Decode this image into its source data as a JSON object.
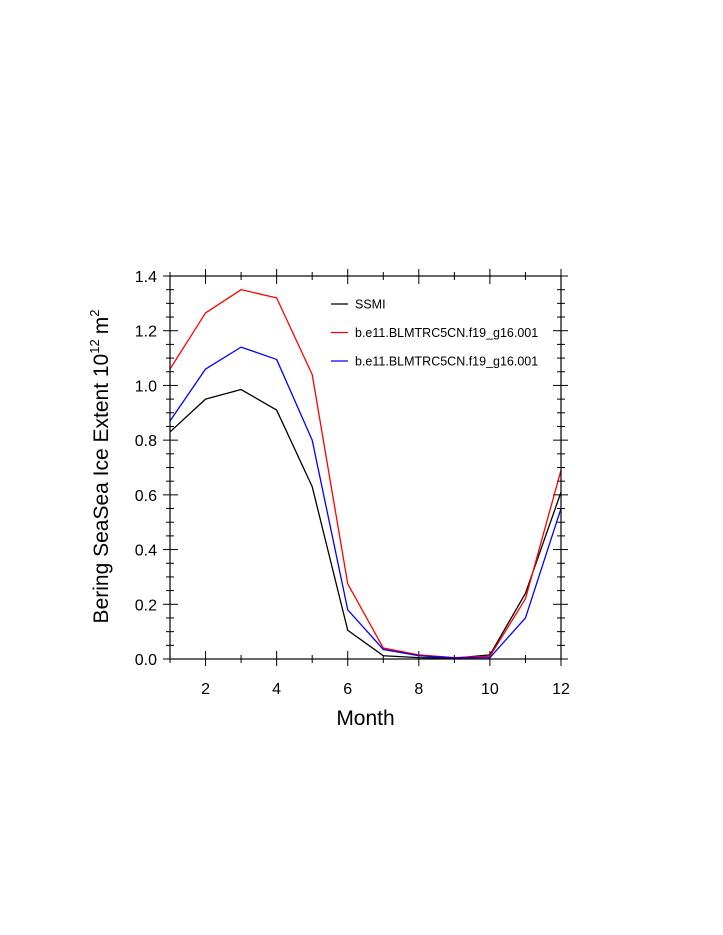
{
  "chart_data": {
    "type": "line",
    "title": "",
    "xlabel": "Month",
    "ylabel": "Bering SeaSea Ice Extent 10",
    "ylabel_superscript": "12",
    "ylabel_unit": "m",
    "ylabel_unit_superscript": "2",
    "xlim": [
      1,
      12
    ],
    "ylim": [
      0.0,
      1.4
    ],
    "x": [
      1,
      2,
      3,
      4,
      5,
      6,
      7,
      8,
      9,
      10,
      11,
      12
    ],
    "xticks": [
      2,
      4,
      6,
      8,
      10,
      12
    ],
    "xtick_labels": [
      "2",
      "4",
      "6",
      "8",
      "10",
      "12"
    ],
    "yticks": [
      0.0,
      0.2,
      0.4,
      0.6,
      0.8,
      1.0,
      1.2,
      1.4
    ],
    "ytick_labels": [
      "0.0",
      "0.2",
      "0.4",
      "0.6",
      "0.8",
      "1.0",
      "1.2",
      "1.4"
    ],
    "grid": false,
    "legend_position": "top-right",
    "series": [
      {
        "name": "SSMI",
        "color": "#000000",
        "values": [
          0.83,
          0.95,
          0.985,
          0.91,
          0.63,
          0.105,
          0.012,
          0.005,
          0.003,
          0.015,
          0.24,
          0.61
        ]
      },
      {
        "name": "b.e11.BLMTRC5CN.f19_g16.001",
        "color": "#ff0000",
        "values": [
          1.06,
          1.265,
          1.35,
          1.32,
          1.04,
          0.275,
          0.04,
          0.015,
          0.005,
          0.01,
          0.22,
          0.69
        ]
      },
      {
        "name": "b.e11.BLMTRC5CN.f19_g16.001",
        "color": "#0000ff",
        "values": [
          0.87,
          1.06,
          1.14,
          1.095,
          0.8,
          0.18,
          0.035,
          0.012,
          0.004,
          0.005,
          0.15,
          0.55
        ]
      }
    ]
  }
}
